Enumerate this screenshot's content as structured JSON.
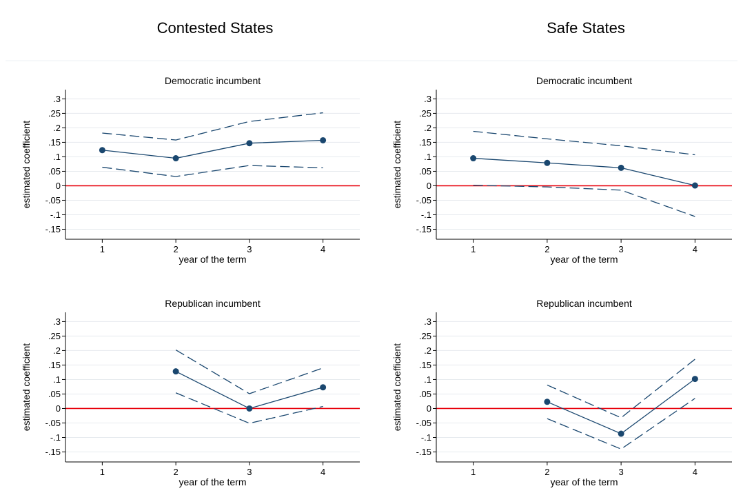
{
  "column_titles": [
    "Contested States",
    "Safe States"
  ],
  "colors": {
    "series": "#1a476f",
    "zero_line": "#e8000b",
    "grid": "#e6eaee",
    "axis": "#000000"
  },
  "chart_data": [
    {
      "type": "line",
      "column": "Contested States",
      "title": "Democratic incumbent",
      "xlabel": "year of the term",
      "ylabel": "estimated coefficient",
      "x_ticks": [
        "1",
        "2",
        "3",
        "4"
      ],
      "y_ticks": [
        ".3",
        ".25",
        ".2",
        ".15",
        ".1",
        ".05",
        "0",
        "-.05",
        "-.1",
        "-.15"
      ],
      "xlim": [
        0.5,
        4.5
      ],
      "ylim": [
        -0.175,
        0.32
      ],
      "grid": true,
      "reference_line": 0,
      "series": [
        {
          "style": "solid-markers",
          "x": [
            1,
            2,
            3,
            4
          ],
          "values": [
            0.123,
            0.095,
            0.147,
            0.157
          ]
        },
        {
          "style": "dashed",
          "x": [
            1,
            2,
            3,
            4
          ],
          "values": [
            0.182,
            0.158,
            0.222,
            0.252
          ]
        },
        {
          "style": "dashed",
          "x": [
            1,
            2,
            3,
            4
          ],
          "values": [
            0.064,
            0.032,
            0.07,
            0.062
          ]
        }
      ]
    },
    {
      "type": "line",
      "column": "Safe States",
      "title": "Democratic incumbent",
      "xlabel": "year of the term",
      "ylabel": "estimated coefficient",
      "x_ticks": [
        "1",
        "2",
        "3",
        "4"
      ],
      "y_ticks": [
        ".3",
        ".25",
        ".2",
        ".15",
        ".1",
        ".05",
        "0",
        "-.05",
        "-.1",
        "-.15"
      ],
      "xlim": [
        0.5,
        4.5
      ],
      "ylim": [
        -0.175,
        0.32
      ],
      "grid": true,
      "reference_line": 0,
      "series": [
        {
          "style": "solid-markers",
          "x": [
            1,
            2,
            3,
            4
          ],
          "values": [
            0.095,
            0.079,
            0.062,
            0.001
          ]
        },
        {
          "style": "dashed",
          "x": [
            1,
            2,
            3,
            4
          ],
          "values": [
            0.188,
            0.162,
            0.138,
            0.107
          ]
        },
        {
          "style": "dashed",
          "x": [
            1,
            2,
            3,
            4
          ],
          "values": [
            0.002,
            -0.004,
            -0.015,
            -0.106
          ]
        }
      ]
    },
    {
      "type": "line",
      "column": "Contested States",
      "title": "Republican incumbent",
      "xlabel": "year of the term",
      "ylabel": "estimated coefficient",
      "x_ticks": [
        "1",
        "2",
        "3",
        "4"
      ],
      "y_ticks": [
        ".3",
        ".25",
        ".2",
        ".15",
        ".1",
        ".05",
        "0",
        "-.05",
        "-.1",
        "-.15"
      ],
      "xlim": [
        0.5,
        4.5
      ],
      "ylim": [
        -0.175,
        0.32
      ],
      "grid": true,
      "reference_line": 0,
      "series": [
        {
          "style": "solid-markers",
          "x": [
            2,
            3,
            4
          ],
          "values": [
            0.128,
            0.0,
            0.073
          ]
        },
        {
          "style": "dashed",
          "x": [
            2,
            3,
            4
          ],
          "values": [
            0.202,
            0.051,
            0.14
          ]
        },
        {
          "style": "dashed",
          "x": [
            2,
            3,
            4
          ],
          "values": [
            0.054,
            -0.051,
            0.007
          ]
        }
      ]
    },
    {
      "type": "line",
      "column": "Safe States",
      "title": "Republican incumbent",
      "xlabel": "year of the term",
      "ylabel": "estimated coefficient",
      "x_ticks": [
        "1",
        "2",
        "3",
        "4"
      ],
      "y_ticks": [
        ".3",
        ".25",
        ".2",
        ".15",
        ".1",
        ".05",
        "0",
        "-.05",
        "-.1",
        "-.15"
      ],
      "xlim": [
        0.5,
        4.5
      ],
      "ylim": [
        -0.175,
        0.32
      ],
      "grid": true,
      "reference_line": 0,
      "series": [
        {
          "style": "solid-markers",
          "x": [
            2,
            3,
            4
          ],
          "values": [
            0.023,
            -0.087,
            0.102
          ]
        },
        {
          "style": "dashed",
          "x": [
            2,
            3,
            4
          ],
          "values": [
            0.081,
            -0.032,
            0.17
          ]
        },
        {
          "style": "dashed",
          "x": [
            2,
            3,
            4
          ],
          "values": [
            -0.035,
            -0.14,
            0.035
          ]
        }
      ]
    }
  ]
}
